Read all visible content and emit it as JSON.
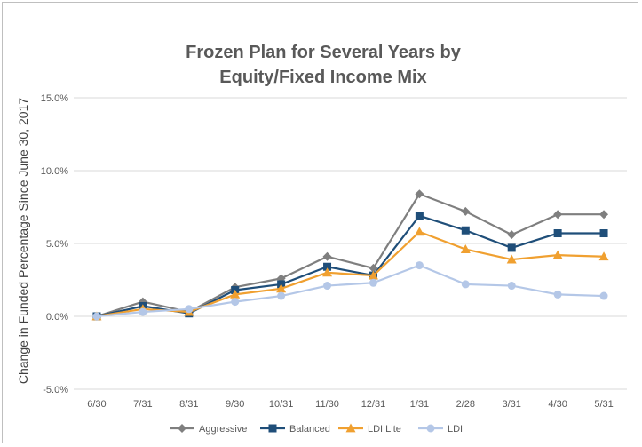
{
  "chart_data": {
    "type": "line",
    "title_line1": "Frozen Plan for Several Years by",
    "title_line2": "Equity/Fixed Income Mix",
    "ylabel": "Change in Funded Percentage Since June 30, 2017",
    "xlabel": "",
    "categories": [
      "6/30",
      "7/31",
      "8/31",
      "9/30",
      "10/31",
      "11/30",
      "12/31",
      "1/31",
      "2/28",
      "3/31",
      "4/30",
      "5/31"
    ],
    "ylim": [
      -5.0,
      15.0
    ],
    "yticks": [
      -5.0,
      0.0,
      5.0,
      10.0,
      15.0
    ],
    "ytick_labels": [
      "-5.0%",
      "0.0%",
      "5.0%",
      "10.0%",
      "15.0%"
    ],
    "grid": true,
    "legend_position": "bottom",
    "series": [
      {
        "name": "Aggressive",
        "color": "#7f7f7f",
        "marker": "diamond",
        "values": [
          0.0,
          1.0,
          0.3,
          2.0,
          2.6,
          4.1,
          3.3,
          8.4,
          7.2,
          5.6,
          7.0,
          7.0
        ]
      },
      {
        "name": "Balanced",
        "color": "#1f4e79",
        "marker": "square",
        "values": [
          0.0,
          0.7,
          0.2,
          1.8,
          2.2,
          3.4,
          2.8,
          6.9,
          5.9,
          4.7,
          5.7,
          5.7
        ]
      },
      {
        "name": "LDI Lite",
        "color": "#f0a030",
        "marker": "triangle",
        "values": [
          0.0,
          0.5,
          0.3,
          1.5,
          1.9,
          3.0,
          2.8,
          5.8,
          4.6,
          3.9,
          4.2,
          4.1
        ]
      },
      {
        "name": "LDI",
        "color": "#b4c7e7",
        "marker": "circle",
        "values": [
          0.0,
          0.3,
          0.5,
          1.0,
          1.4,
          2.1,
          2.3,
          3.5,
          2.2,
          2.1,
          1.5,
          1.4
        ]
      }
    ]
  }
}
